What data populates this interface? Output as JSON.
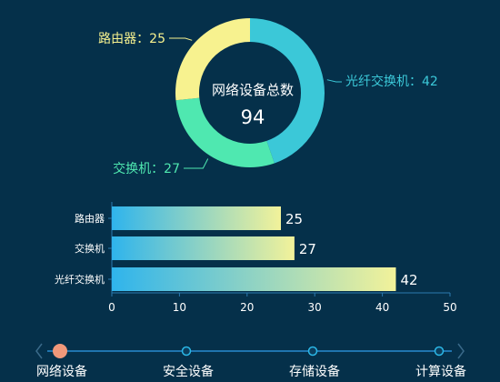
{
  "colors": {
    "background": "#05304a",
    "router": "#f7f28f",
    "switch": "#4fe8b0",
    "fiber_switch": "#3bc8d8",
    "bar_start": "#2fb4ec",
    "bar_end": "#f2f29a",
    "axis": "#2a7ab0",
    "timeline_line": "#1f74ae",
    "timeline_dot": "#2bb7e6",
    "timeline_active": "#f0987a",
    "text": "#ffffff"
  },
  "chart_data": [
    {
      "type": "pie",
      "variant": "donut",
      "center_label": "网络设备总数",
      "total": 94,
      "slices": [
        {
          "name": "光纤交换机",
          "value": 42,
          "label": "光纤交换机：42",
          "color": "#3bc8d8"
        },
        {
          "name": "交换机",
          "value": 27,
          "label": "交换机：27",
          "color": "#4fe8b0"
        },
        {
          "name": "路由器",
          "value": 25,
          "label": "路由器：25",
          "color": "#f7f28f"
        }
      ]
    },
    {
      "type": "bar",
      "orientation": "horizontal",
      "categories": [
        "路由器",
        "交换机",
        "光纤交换机"
      ],
      "values": [
        25,
        27,
        42
      ],
      "xlim": [
        0,
        50
      ],
      "xticks": [
        0,
        10,
        20,
        30,
        40,
        50
      ],
      "data_labels": true,
      "grid": false
    }
  ],
  "timeline": {
    "items": [
      "网络设备",
      "安全设备",
      "存储设备",
      "计算设备"
    ],
    "active_index": 0,
    "prev_icon": "chevron-left-icon",
    "next_icon": "chevron-right-icon"
  }
}
